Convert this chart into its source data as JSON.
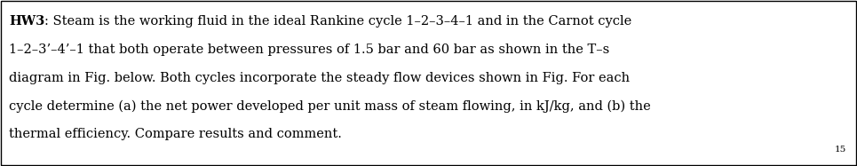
{
  "bold_prefix": "HW3",
  "colon_text": ": Steam is the working fluid in the ideal Rankine cycle 1–2–3–4–1 and in the Carnot cycle",
  "line2": "1–2–3’–4’–1 that both operate between pressures of 1.5 bar and 60 bar as shown in the T–s",
  "line3": "diagram in Fig. below. Both cycles incorporate the steady flow devices shown in Fig. For each",
  "line4": "cycle determine (a) the net power developed per unit mass of steam flowing, in kJ/kg, and (b) the",
  "line5": "thermal efficiency. Compare results and comment.",
  "page_number": "15",
  "background_color": "#ffffff",
  "border_color": "#000000",
  "text_color": "#000000",
  "font_size": 10.5,
  "page_num_font_size": 7.5,
  "fig_width": 9.65,
  "fig_height": 1.87,
  "dpi": 100
}
